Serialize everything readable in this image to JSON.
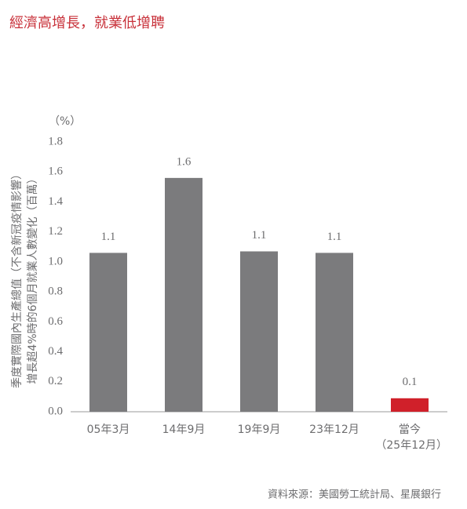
{
  "chart_data": {
    "type": "bar",
    "title": "經濟高增長，就業低增聘",
    "y_unit": "（%）",
    "ylabel": [
      "季度實際國內生產總值（不含新冠疫情影響）",
      "增長超4%時的6個月就業人數變化（百萬）"
    ],
    "categories": [
      "05年3月",
      "14年9月",
      "19年9月",
      "23年12月",
      "當今\n（25年12月）"
    ],
    "values": [
      1.06,
      1.56,
      1.07,
      1.06,
      0.09
    ],
    "value_labels": [
      "1.1",
      "1.6",
      "1.1",
      "1.1",
      "0.1"
    ],
    "colors": [
      "#7b7b7d",
      "#7b7b7d",
      "#7b7b7d",
      "#7b7b7d",
      "#d0202a"
    ],
    "ylim": [
      0,
      1.8
    ],
    "yticks": [
      {
        "value": 0,
        "label": "0.0"
      },
      0.2,
      0.4,
      0.6,
      0.8,
      {
        "value": 1,
        "label": "1.0"
      },
      1.2,
      1.4,
      1.6,
      1.8
    ],
    "grid": false,
    "source": "資料來源：美國勞工統計局、星展銀行"
  }
}
